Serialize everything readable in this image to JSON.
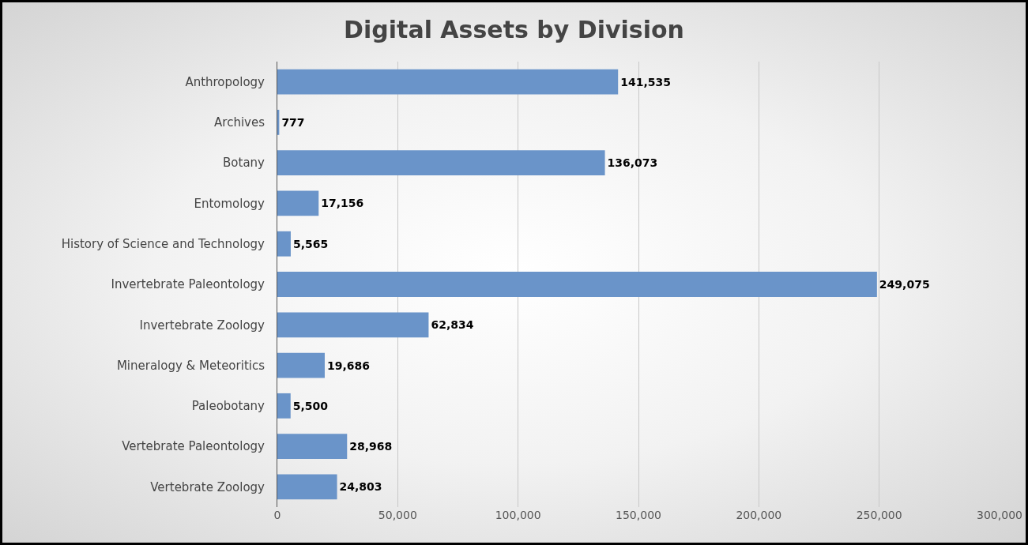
{
  "chart_data": {
    "type": "bar",
    "orientation": "horizontal",
    "title": "Digital Assets by Division",
    "categories": [
      "Anthropology",
      "Archives",
      "Botany",
      "Entomology",
      "History of Science and Technology",
      "Invertebrate Paleontology",
      "Invertebrate Zoology",
      "Mineralogy & Meteoritics",
      "Paleobotany",
      "Vertebrate Paleontology",
      "Vertebrate Zoology"
    ],
    "values": [
      141535,
      777,
      136073,
      17156,
      5565,
      249075,
      62834,
      19686,
      5500,
      28968,
      24803
    ],
    "color": "#6a94c9",
    "xlim": [
      0,
      300000
    ],
    "xticks": [
      {
        "value": 0,
        "label": "0"
      },
      {
        "value": 50000,
        "label": "50,000"
      },
      {
        "value": 100000,
        "label": "100,000"
      },
      {
        "value": 150000,
        "label": "150,000"
      },
      {
        "value": 200000,
        "label": "200,000"
      },
      {
        "value": 250000,
        "label": "250,000"
      },
      {
        "value": 300000,
        "label": "300,000"
      }
    ],
    "value_labels": [
      "141,535",
      "777",
      "136,073",
      "17,156",
      "5,565",
      "249,075",
      "62,834",
      "19,686",
      "5,500",
      "28,968",
      "24,803"
    ],
    "grid": "x"
  }
}
